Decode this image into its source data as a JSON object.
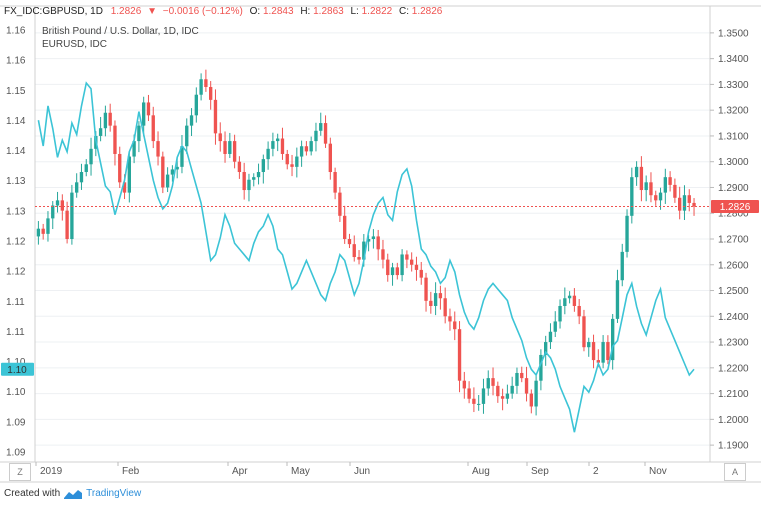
{
  "header": {
    "symbol": "FX_IDC:GBPUSD, 1D",
    "last": "1.2826",
    "change": "−0.0016 (−0.12%)",
    "open_label": "O:",
    "open": "1.2843",
    "high_label": "H:",
    "high": "1.2863",
    "low_label": "L:",
    "low": "1.2822",
    "close_label": "C:",
    "close": "1.2826",
    "series_title": "British Pound / U.S. Dollar, 1D, IDC",
    "compare_title": "EURUSD, IDC"
  },
  "colors": {
    "up": "#26a69a",
    "down": "#ef5350",
    "compare": "#3cc4d6",
    "price_line": "#ef5350"
  },
  "footer": {
    "created_with": "Created with",
    "brand": "TradingView"
  },
  "corner_left": "Z",
  "corner_right": "A",
  "chart_data": {
    "type": "candlestick",
    "right_axis": {
      "ticks": [
        "1.3500",
        "1.3400",
        "1.3300",
        "1.3200",
        "1.3100",
        "1.3000",
        "1.2900",
        "1.2800",
        "1.2700",
        "1.2600",
        "1.2500",
        "1.2400",
        "1.2300",
        "1.2200",
        "1.2100",
        "1.2000",
        "1.1900"
      ],
      "range": [
        1.185,
        1.355
      ]
    },
    "left_axis": {
      "ticks": [
        "1.16",
        "1.16",
        "1.15",
        "1.14",
        "1.14",
        "1.13",
        "1.13",
        "1.12",
        "1.12",
        "1.11",
        "1.11",
        "1.10",
        "1.10",
        "1.09",
        "1.09"
      ],
      "range": [
        1.0875,
        1.164
      ]
    },
    "x_labels": [
      "2019",
      "Feb",
      "Apr",
      "May",
      "Jun",
      "Aug",
      "Sep",
      "2",
      "Nov"
    ],
    "last_price_label": "1.2826",
    "compare_last_label": "1.10",
    "gbpusd_closes": [
      1.274,
      1.272,
      1.278,
      1.283,
      1.285,
      1.281,
      1.27,
      1.288,
      1.292,
      1.296,
      1.299,
      1.305,
      1.31,
      1.313,
      1.319,
      1.314,
      1.303,
      1.292,
      1.288,
      1.302,
      1.308,
      1.314,
      1.323,
      1.318,
      1.308,
      1.302,
      1.29,
      1.295,
      1.297,
      1.298,
      1.306,
      1.314,
      1.318,
      1.326,
      1.332,
      1.329,
      1.324,
      1.311,
      1.308,
      1.303,
      1.308,
      1.3,
      1.296,
      1.289,
      1.293,
      1.294,
      1.296,
      1.301,
      1.305,
      1.308,
      1.309,
      1.303,
      1.299,
      1.298,
      1.302,
      1.306,
      1.304,
      1.308,
      1.312,
      1.315,
      1.307,
      1.296,
      1.288,
      1.279,
      1.27,
      1.268,
      1.263,
      1.262,
      1.269,
      1.27,
      1.271,
      1.266,
      1.262,
      1.256,
      1.259,
      1.256,
      1.264,
      1.262,
      1.26,
      1.258,
      1.255,
      1.246,
      1.244,
      1.249,
      1.247,
      1.24,
      1.238,
      1.235,
      1.215,
      1.212,
      1.208,
      1.206,
      1.206,
      1.212,
      1.216,
      1.213,
      1.209,
      1.208,
      1.21,
      1.213,
      1.218,
      1.216,
      1.21,
      1.205,
      1.215,
      1.225,
      1.23,
      1.234,
      1.238,
      1.244,
      1.247,
      1.248,
      1.244,
      1.24,
      1.228,
      1.23,
      1.223,
      1.222,
      1.23,
      1.223,
      1.239,
      1.254,
      1.265,
      1.279,
      1.294,
      1.298,
      1.289,
      1.292,
      1.287,
      1.285,
      1.288,
      1.294,
      1.291,
      1.286,
      1.281,
      1.287,
      1.284,
      1.2826
    ],
    "eurusd_closes": [
      1.1465,
      1.142,
      1.149,
      1.145,
      1.14,
      1.143,
      1.141,
      1.146,
      1.144,
      1.149,
      1.153,
      1.152,
      1.143,
      1.139,
      1.135,
      1.134,
      1.13,
      1.133,
      1.136,
      1.141,
      1.143,
      1.148,
      1.144,
      1.14,
      1.136,
      1.133,
      1.131,
      1.132,
      1.135,
      1.14,
      1.142,
      1.141,
      1.138,
      1.135,
      1.132,
      1.127,
      1.122,
      1.123,
      1.126,
      1.13,
      1.128,
      1.125,
      1.124,
      1.123,
      1.122,
      1.125,
      1.127,
      1.128,
      1.13,
      1.128,
      1.124,
      1.123,
      1.12,
      1.117,
      1.118,
      1.12,
      1.122,
      1.12,
      1.118,
      1.116,
      1.115,
      1.118,
      1.12,
      1.123,
      1.122,
      1.119,
      1.116,
      1.118,
      1.122,
      1.127,
      1.13,
      1.132,
      1.133,
      1.13,
      1.129,
      1.134,
      1.137,
      1.138,
      1.135,
      1.129,
      1.124,
      1.123,
      1.121,
      1.12,
      1.118,
      1.119,
      1.122,
      1.12,
      1.116,
      1.113,
      1.111,
      1.11,
      1.112,
      1.115,
      1.117,
      1.118,
      1.117,
      1.116,
      1.115,
      1.112,
      1.11,
      1.108,
      1.105,
      1.103,
      1.102,
      1.104,
      1.106,
      1.105,
      1.103,
      1.1,
      1.098,
      1.096,
      1.092,
      1.096,
      1.1,
      1.099,
      1.101,
      1.104,
      1.102,
      1.103,
      1.107,
      1.108,
      1.112,
      1.116,
      1.118,
      1.114,
      1.111,
      1.109,
      1.112,
      1.115,
      1.117,
      1.112,
      1.11,
      1.108,
      1.106,
      1.104,
      1.102,
      1.103
    ]
  }
}
